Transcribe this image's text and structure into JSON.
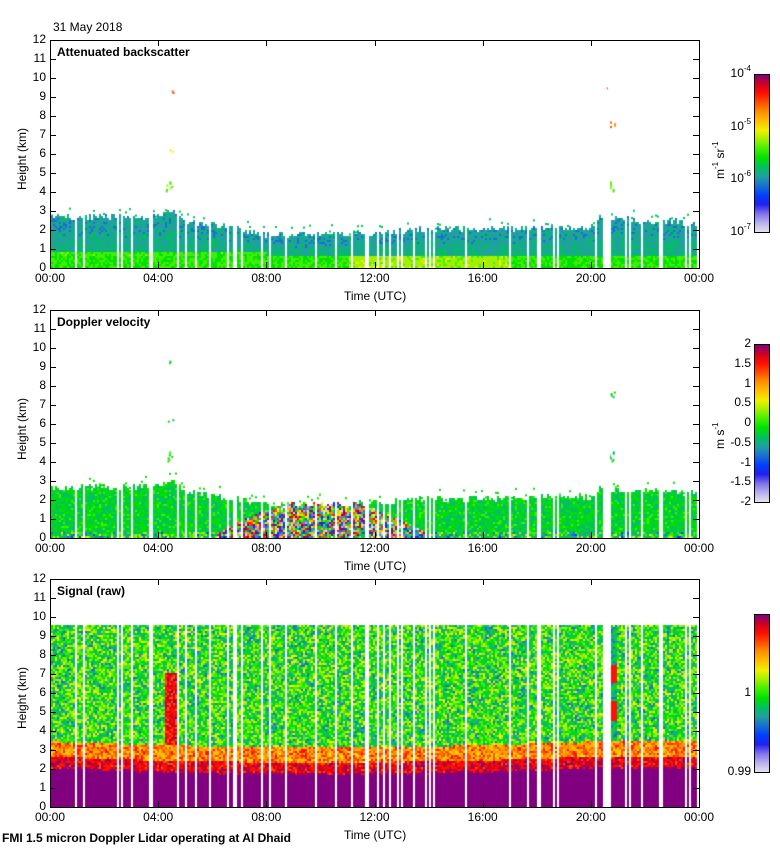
{
  "date_label": "31 May 2018",
  "footer": "FMI 1.5 micron Doppler Lidar operating at Al Dhaid",
  "colormap": [
    "#e6e0ec",
    "#b8b0ec",
    "#8070ec",
    "#2020f0",
    "#0040ff",
    "#1870d0",
    "#20a0a0",
    "#00c060",
    "#00e000",
    "#40f000",
    "#a0f000",
    "#f0f000",
    "#ffc000",
    "#ff9000",
    "#ff5000",
    "#ff1000",
    "#d00020",
    "#800080"
  ],
  "chart_data": [
    {
      "type": "heatmap",
      "title": "Attenuated backscatter",
      "xlabel": "Time (UTC)",
      "ylabel": "Height (km)",
      "x_ticks": [
        "00:00",
        "04:00",
        "08:00",
        "12:00",
        "16:00",
        "20:00",
        "00:00"
      ],
      "y_ticks": [
        0,
        1,
        2,
        3,
        4,
        5,
        6,
        7,
        8,
        9,
        10,
        11,
        12
      ],
      "ylim": [
        0,
        12
      ],
      "xlim_hours": [
        0,
        24
      ],
      "colorbar": {
        "scale": "log",
        "range": [
          1e-07,
          0.0001
        ],
        "ticks": [
          {
            "base": "10",
            "exp": "-7",
            "v": 0
          },
          {
            "base": "10",
            "exp": "-6",
            "v": 0.333
          },
          {
            "base": "10",
            "exp": "-5",
            "v": 0.667
          },
          {
            "base": "10",
            "exp": "-4",
            "v": 1
          }
        ],
        "unit_html": "m<sup>-1</sup> sr<sup>-1</sup>"
      },
      "layer_top_km": [
        [
          0,
          2.6
        ],
        [
          4,
          2.7
        ],
        [
          4.5,
          3.1
        ],
        [
          5,
          2.4
        ],
        [
          7,
          2.0
        ],
        [
          8,
          1.7
        ],
        [
          12,
          1.8
        ],
        [
          14,
          2.0
        ],
        [
          20,
          2.1
        ],
        [
          20.3,
          2.6
        ],
        [
          24,
          2.3
        ]
      ],
      "features": [
        {
          "hour": 4.35,
          "km_from": 4.1,
          "km_to": 4.6,
          "value": 0.55
        },
        {
          "hour": 4.4,
          "km_from": 6.2,
          "km_to": 6.3,
          "value": 0.65
        },
        {
          "hour": 4.4,
          "km_from": 9.3,
          "km_to": 9.4,
          "value": 0.8
        },
        {
          "hour": 20.7,
          "km_from": 4.1,
          "km_to": 4.6,
          "value": 0.55
        },
        {
          "hour": 20.75,
          "km_from": 7.5,
          "km_to": 7.8,
          "value": 0.78
        },
        {
          "hour": 20.5,
          "km_from": 9.55,
          "km_to": 9.6,
          "value": 0.9
        }
      ],
      "mode": "backscatter"
    },
    {
      "type": "heatmap",
      "title": "Doppler velocity",
      "xlabel": "Time (UTC)",
      "ylabel": "Height (km)",
      "x_ticks": [
        "00:00",
        "04:00",
        "08:00",
        "12:00",
        "16:00",
        "20:00",
        "00:00"
      ],
      "y_ticks": [
        0,
        1,
        2,
        3,
        4,
        5,
        6,
        7,
        8,
        9,
        10,
        11,
        12
      ],
      "ylim": [
        0,
        12
      ],
      "xlim_hours": [
        0,
        24
      ],
      "colorbar": {
        "scale": "linear",
        "range": [
          -2,
          2
        ],
        "ticks": [
          {
            "base": "2",
            "v": 1
          },
          {
            "base": "1.5",
            "v": 0.875
          },
          {
            "base": "1",
            "v": 0.75
          },
          {
            "base": "0.5",
            "v": 0.625
          },
          {
            "base": "0",
            "v": 0.5
          },
          {
            "base": "-0.5",
            "v": 0.375
          },
          {
            "base": "-1",
            "v": 0.25
          },
          {
            "base": "-1.5",
            "v": 0.125
          },
          {
            "base": "-2",
            "v": 0
          }
        ],
        "unit_html": "m s<sup>-1</sup>"
      },
      "layer_top_km": [
        [
          0,
          2.6
        ],
        [
          4,
          2.7
        ],
        [
          4.5,
          3.1
        ],
        [
          5,
          2.4
        ],
        [
          7,
          2.0
        ],
        [
          8,
          1.7
        ],
        [
          12,
          1.8
        ],
        [
          14,
          2.0
        ],
        [
          20,
          2.1
        ],
        [
          20.3,
          2.6
        ],
        [
          24,
          2.3
        ]
      ],
      "convective_window_hours": [
        6,
        14
      ],
      "features": [
        {
          "hour": 4.35,
          "km_from": 4.1,
          "km_to": 4.6,
          "value": 0.5
        },
        {
          "hour": 4.4,
          "km_from": 6.2,
          "km_to": 6.3,
          "value": 0.45
        },
        {
          "hour": 4.4,
          "km_from": 9.3,
          "km_to": 9.4,
          "value": 0.45
        },
        {
          "hour": 20.7,
          "km_from": 4.1,
          "km_to": 4.6,
          "value": 0.45
        },
        {
          "hour": 20.75,
          "km_from": 7.5,
          "km_to": 7.8,
          "value": 0.45
        }
      ],
      "mode": "velocity"
    },
    {
      "type": "heatmap",
      "title": "Signal (raw)",
      "xlabel": "Time (UTC)",
      "ylabel": "Height (km)",
      "x_ticks": [
        "00:00",
        "04:00",
        "08:00",
        "12:00",
        "16:00",
        "20:00",
        "00:00"
      ],
      "y_ticks": [
        0,
        1,
        2,
        3,
        4,
        5,
        6,
        7,
        8,
        9,
        10,
        11,
        12
      ],
      "ylim": [
        0,
        12
      ],
      "xlim_hours": [
        0,
        24
      ],
      "colorbar": {
        "scale": "linear",
        "range": [
          0.99,
          1.01
        ],
        "ticks": [
          {
            "base": "1",
            "v": 0.5
          },
          {
            "base": "0.99",
            "v": 0
          }
        ],
        "unit_html": ""
      },
      "data_top_km": 9.6,
      "saturated_top_km": [
        [
          0,
          2.0
        ],
        [
          4,
          1.8
        ],
        [
          8,
          1.7
        ],
        [
          12,
          1.7
        ],
        [
          16,
          1.8
        ],
        [
          20,
          2.0
        ],
        [
          24,
          2.0
        ]
      ],
      "mode": "signal"
    }
  ]
}
